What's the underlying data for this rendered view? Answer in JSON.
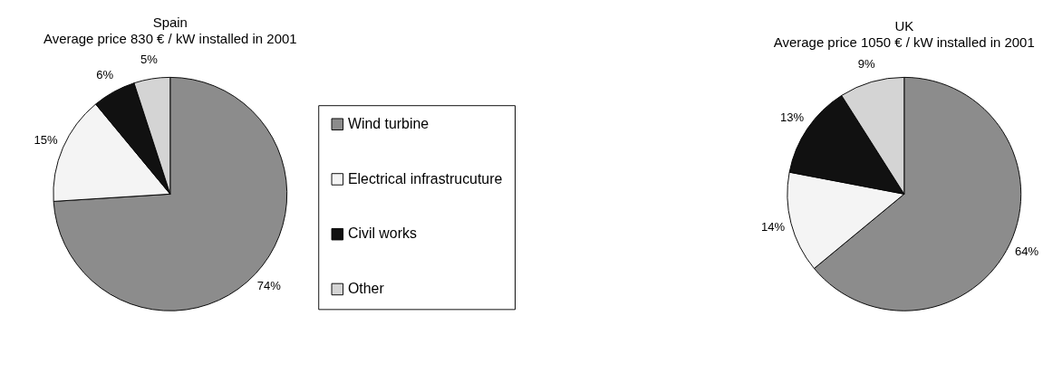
{
  "chart_data": [
    {
      "type": "pie",
      "title": "Spain",
      "subtitle": "Average price 830 € / kW installed in 2001",
      "categories": [
        "Wind turbine",
        "Electrical infrastrucuture",
        "Civil works",
        "Other"
      ],
      "values": [
        74,
        15,
        6,
        5
      ],
      "colors": [
        "#8c8c8c",
        "#f4f4f4",
        "#111111",
        "#d4d4d4"
      ],
      "value_labels": [
        "74%",
        "15%",
        "6%",
        "5%"
      ],
      "legend": "right"
    },
    {
      "type": "pie",
      "title": "UK",
      "subtitle": "Average price 1050 € / kW installed in 2001",
      "categories": [
        null,
        null,
        null,
        null
      ],
      "values": [
        64,
        14,
        13,
        9
      ],
      "colors": [
        "#8c8c8c",
        "#f4f4f4",
        "#111111",
        "#d4d4d4"
      ],
      "value_labels": [
        "64%",
        "14%",
        "13%",
        "9%"
      ]
    }
  ]
}
